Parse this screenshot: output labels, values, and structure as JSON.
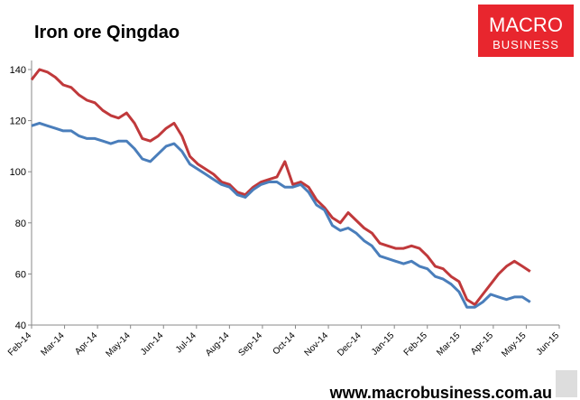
{
  "chart_data": {
    "type": "line",
    "title": "Iron ore Qingdao",
    "x": [
      0,
      0.24,
      0.48,
      0.72,
      0.96,
      1.2,
      1.44,
      1.68,
      1.92,
      2.16,
      2.4,
      2.64,
      2.88,
      3.12,
      3.36,
      3.6,
      3.84,
      4.08,
      4.32,
      4.56,
      4.8,
      5.04,
      5.28,
      5.52,
      5.76,
      6,
      6.24,
      6.48,
      6.72,
      6.96,
      7.2,
      7.44,
      7.68,
      7.92,
      8.16,
      8.4,
      8.64,
      8.88,
      9.12,
      9.36,
      9.6,
      9.84,
      10.08,
      10.32,
      10.56,
      10.8,
      11.04,
      11.28,
      11.52,
      11.76,
      12,
      12.24,
      12.48,
      12.72,
      12.96,
      13.2,
      13.44,
      13.68,
      13.92,
      14.16,
      14.4,
      14.64,
      14.88,
      15.12
    ],
    "series": [
      {
        "color": "#c0393b",
        "values": [
          136,
          140,
          139,
          137,
          134,
          133,
          130,
          128,
          127,
          124,
          122,
          121,
          123,
          119,
          113,
          112,
          114,
          117,
          119,
          114,
          106,
          103,
          101,
          99,
          96,
          95,
          92,
          91,
          94,
          96,
          97,
          98,
          104,
          95,
          96,
          94,
          89,
          86,
          82,
          80,
          84,
          81,
          78,
          76,
          72,
          71,
          70,
          70,
          71,
          70,
          67,
          63,
          62,
          59,
          57,
          50,
          48,
          52,
          56,
          60,
          63,
          65,
          63,
          61
        ]
      },
      {
        "color": "#4a7ebb",
        "values": [
          118,
          119,
          118,
          117,
          116,
          116,
          114,
          113,
          113,
          112,
          111,
          112,
          112,
          109,
          105,
          104,
          107,
          110,
          111,
          108,
          103,
          101,
          99,
          97,
          95,
          94,
          91,
          90,
          93,
          95,
          96,
          96,
          94,
          94,
          95,
          92,
          87,
          85,
          79,
          77,
          78,
          76,
          73,
          71,
          67,
          66,
          65,
          64,
          65,
          63,
          62,
          59,
          58,
          56,
          53,
          47,
          47,
          49,
          52,
          51,
          50,
          51,
          51,
          49
        ]
      }
    ],
    "xlim": [
      0,
      16
    ],
    "xticks": [
      {
        "value": 0,
        "label": "Feb-14"
      },
      {
        "value": 1,
        "label": "Mar-14"
      },
      {
        "value": 2,
        "label": "Apr-14"
      },
      {
        "value": 3,
        "label": "May-14"
      },
      {
        "value": 4,
        "label": "Jun-14"
      },
      {
        "value": 5,
        "label": "Jul-14"
      },
      {
        "value": 6,
        "label": "Aug-14"
      },
      {
        "value": 7,
        "label": "Sep-14"
      },
      {
        "value": 8,
        "label": "Oct-14"
      },
      {
        "value": 9,
        "label": "Nov-14"
      },
      {
        "value": 10,
        "label": "Dec-14"
      },
      {
        "value": 11,
        "label": "Jan-15"
      },
      {
        "value": 12,
        "label": "Feb-15"
      },
      {
        "value": 13,
        "label": "Mar-15"
      },
      {
        "value": 14,
        "label": "Apr-15"
      },
      {
        "value": 15,
        "label": "May-15"
      },
      {
        "value": 16,
        "label": "Jun-15"
      }
    ],
    "ylim": [
      40,
      140
    ],
    "yticks": [
      40,
      60,
      80,
      100,
      120,
      140
    ]
  },
  "branding": {
    "logo_top": "MACRO",
    "logo_bottom": "BUSINESS",
    "url": "www.macrobusiness.com.au"
  }
}
